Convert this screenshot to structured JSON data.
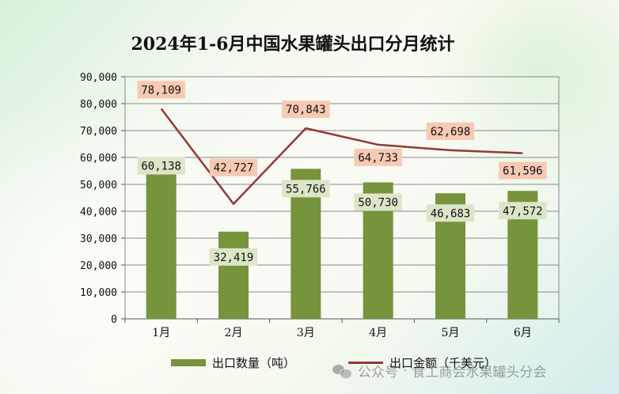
{
  "title": "2024年1-6月中国水果罐头出口分月统计",
  "colors": {
    "bar": "#77933c",
    "line": "#953735",
    "bar_label_bg": "#dbe6c8",
    "line_label_bg": "#f7c9b3"
  },
  "legend": {
    "bar_label": "出口数量（吨）",
    "line_label": "出口金额（千美元）"
  },
  "watermark": {
    "icon": "wechat-icon",
    "prefix": "公众号",
    "separator": "·",
    "name": "食工商会水果罐头分会"
  },
  "chart_data": {
    "type": "bar",
    "categories": [
      "1月",
      "2月",
      "3月",
      "4月",
      "5月",
      "6月"
    ],
    "ylim": [
      0,
      90000
    ],
    "yticks": [
      "0",
      "10,000",
      "20,000",
      "30,000",
      "40,000",
      "50,000",
      "60,000",
      "70,000",
      "80,000",
      "90,000"
    ],
    "ytick_values": [
      0,
      10000,
      20000,
      30000,
      40000,
      50000,
      60000,
      70000,
      80000,
      90000
    ],
    "grid": true,
    "legend_position": "bottom",
    "series": [
      {
        "name": "出口数量（吨）",
        "type": "bar",
        "values": [
          60138,
          32419,
          55766,
          50730,
          46683,
          47572
        ],
        "labels": [
          "60,138",
          "32,419",
          "55,766",
          "50,730",
          "46,683",
          "47,572"
        ]
      },
      {
        "name": "出口金额（千美元）",
        "type": "line",
        "values": [
          78109,
          42727,
          70843,
          64733,
          62698,
          61596
        ],
        "labels": [
          "78,109",
          "42,727",
          "70,843",
          "64,733",
          "62,698",
          "61,596"
        ]
      }
    ]
  }
}
